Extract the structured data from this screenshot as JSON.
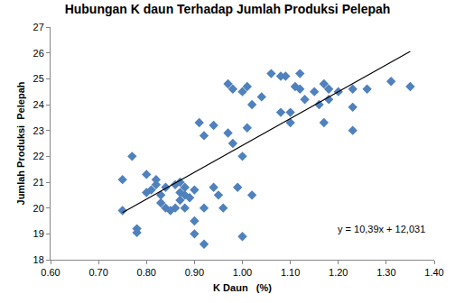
{
  "chart_data": {
    "type": "scatter",
    "title": "Hubungan K daun Terhadap Jumlah Produksi Pelepah",
    "x_label": "K Daun   (%)",
    "y_label": "Jumlah Produksi  Pelepah",
    "xlim": [
      0.6,
      1.4
    ],
    "xticks": [
      {
        "value": 0.6,
        "label": "0.60"
      },
      {
        "value": 0.7,
        "label": "0.70"
      },
      {
        "value": 0.8,
        "label": "0.80"
      },
      {
        "value": 0.9,
        "label": "0.90"
      },
      {
        "value": 1.0,
        "label": "1.00"
      },
      {
        "value": 1.1,
        "label": "1.10"
      },
      {
        "value": 1.2,
        "label": "1.20"
      },
      {
        "value": 1.3,
        "label": "1.30"
      },
      {
        "value": 1.4,
        "label": "1.40"
      }
    ],
    "ylim": [
      18,
      27
    ],
    "yticks": [
      18,
      19,
      20,
      21,
      22,
      23,
      24,
      25,
      26,
      27
    ],
    "grid": false,
    "annotations": [
      "y = 10,39x + 12,031"
    ],
    "series": [
      {
        "type": "scatter",
        "marker": "diamond",
        "color": "#4f81bd",
        "x": [
          0.75,
          0.75,
          0.77,
          0.78,
          0.78,
          0.8,
          0.8,
          0.81,
          0.82,
          0.82,
          0.83,
          0.83,
          0.84,
          0.84,
          0.85,
          0.86,
          0.86,
          0.87,
          0.87,
          0.87,
          0.88,
          0.88,
          0.88,
          0.89,
          0.9,
          0.9,
          0.9,
          0.91,
          0.92,
          0.92,
          0.92,
          0.94,
          0.94,
          0.95,
          0.96,
          0.97,
          0.97,
          0.98,
          0.98,
          0.99,
          1.0,
          1.0,
          1.0,
          1.01,
          1.01,
          1.02,
          1.02,
          1.04,
          1.06,
          1.08,
          1.08,
          1.09,
          1.1,
          1.1,
          1.11,
          1.12,
          1.12,
          1.13,
          1.15,
          1.16,
          1.17,
          1.17,
          1.18,
          1.18,
          1.2,
          1.23,
          1.23,
          1.23,
          1.26,
          1.31,
          1.35
        ],
        "values": [
          21.1,
          19.9,
          22.0,
          19.2,
          19.05,
          20.6,
          21.3,
          20.7,
          20.9,
          21.1,
          20.5,
          20.2,
          20.0,
          20.8,
          19.9,
          20.0,
          20.9,
          21.0,
          20.6,
          20.3,
          20.8,
          20.5,
          20.0,
          20.4,
          20.7,
          19.5,
          19.0,
          23.3,
          22.8,
          20.0,
          18.6,
          23.2,
          20.8,
          20.5,
          20.0,
          22.9,
          24.8,
          24.6,
          22.5,
          20.8,
          24.5,
          22.0,
          18.9,
          24.7,
          23.1,
          20.5,
          24.0,
          24.3,
          25.2,
          25.1,
          23.7,
          25.1,
          23.3,
          23.7,
          24.7,
          25.2,
          24.6,
          24.2,
          24.5,
          24.0,
          24.8,
          23.3,
          24.2,
          24.6,
          24.5,
          24.6,
          23.9,
          23.0,
          24.6,
          24.9,
          24.7
        ]
      },
      {
        "type": "line",
        "color": "#000000",
        "line_style": "solid",
        "x": [
          0.75,
          1.35
        ],
        "values": [
          19.8235,
          26.0575
        ]
      }
    ]
  }
}
